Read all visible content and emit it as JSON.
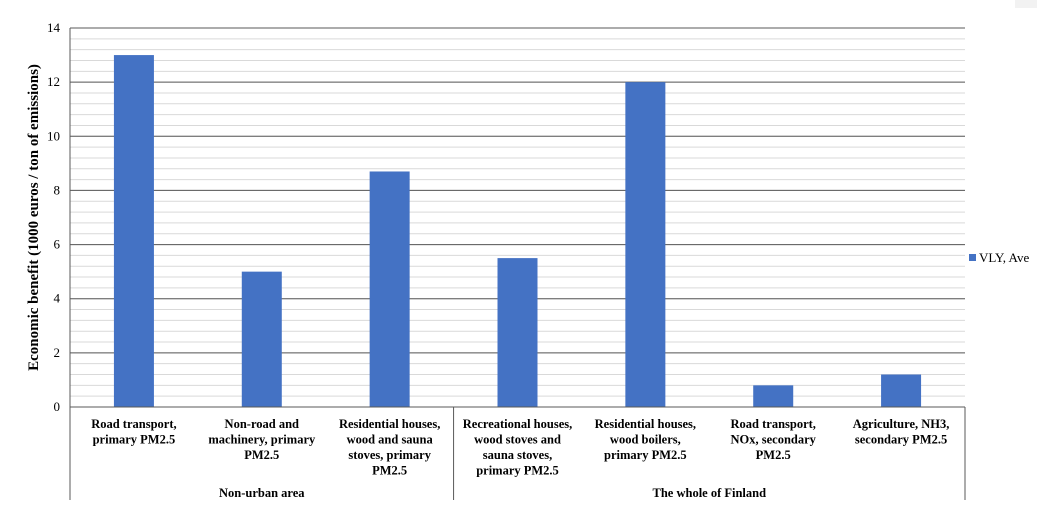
{
  "chart_data": {
    "type": "bar",
    "ylabel": "Economic benefit (1000 euros / ton of emissions)",
    "xlabel": "",
    "ylim": [
      0,
      14
    ],
    "major_ticks": [
      0,
      2,
      4,
      6,
      8,
      10,
      12,
      14
    ],
    "minor_tick_step": 0.4,
    "grid": true,
    "legend_position": "right",
    "bar_color": "#4472C4",
    "series": [
      {
        "name": "VLY, Ave",
        "values": [
          13,
          5,
          8.7,
          5.5,
          12,
          0.8,
          1.2
        ]
      }
    ],
    "categories": [
      [
        "Road transport,",
        "primary PM2.5"
      ],
      [
        "Non-road and",
        "machinery, primary",
        "PM2.5"
      ],
      [
        "Residential houses,",
        "wood and  sauna",
        "stoves, primary",
        "PM2.5"
      ],
      [
        "Recreational houses,",
        "wood stoves and",
        "sauna stoves,",
        "primary PM2.5"
      ],
      [
        "Residential houses,",
        "wood boilers,",
        "primary PM2.5"
      ],
      [
        "Road transport,",
        "NOx, secondary",
        "PM2.5"
      ],
      [
        "Agriculture, NH3,",
        "secondary PM2.5"
      ]
    ],
    "groups": [
      {
        "label": "Non-urban area",
        "count": 3
      },
      {
        "label": "The whole of Finland",
        "count": 4
      }
    ]
  }
}
